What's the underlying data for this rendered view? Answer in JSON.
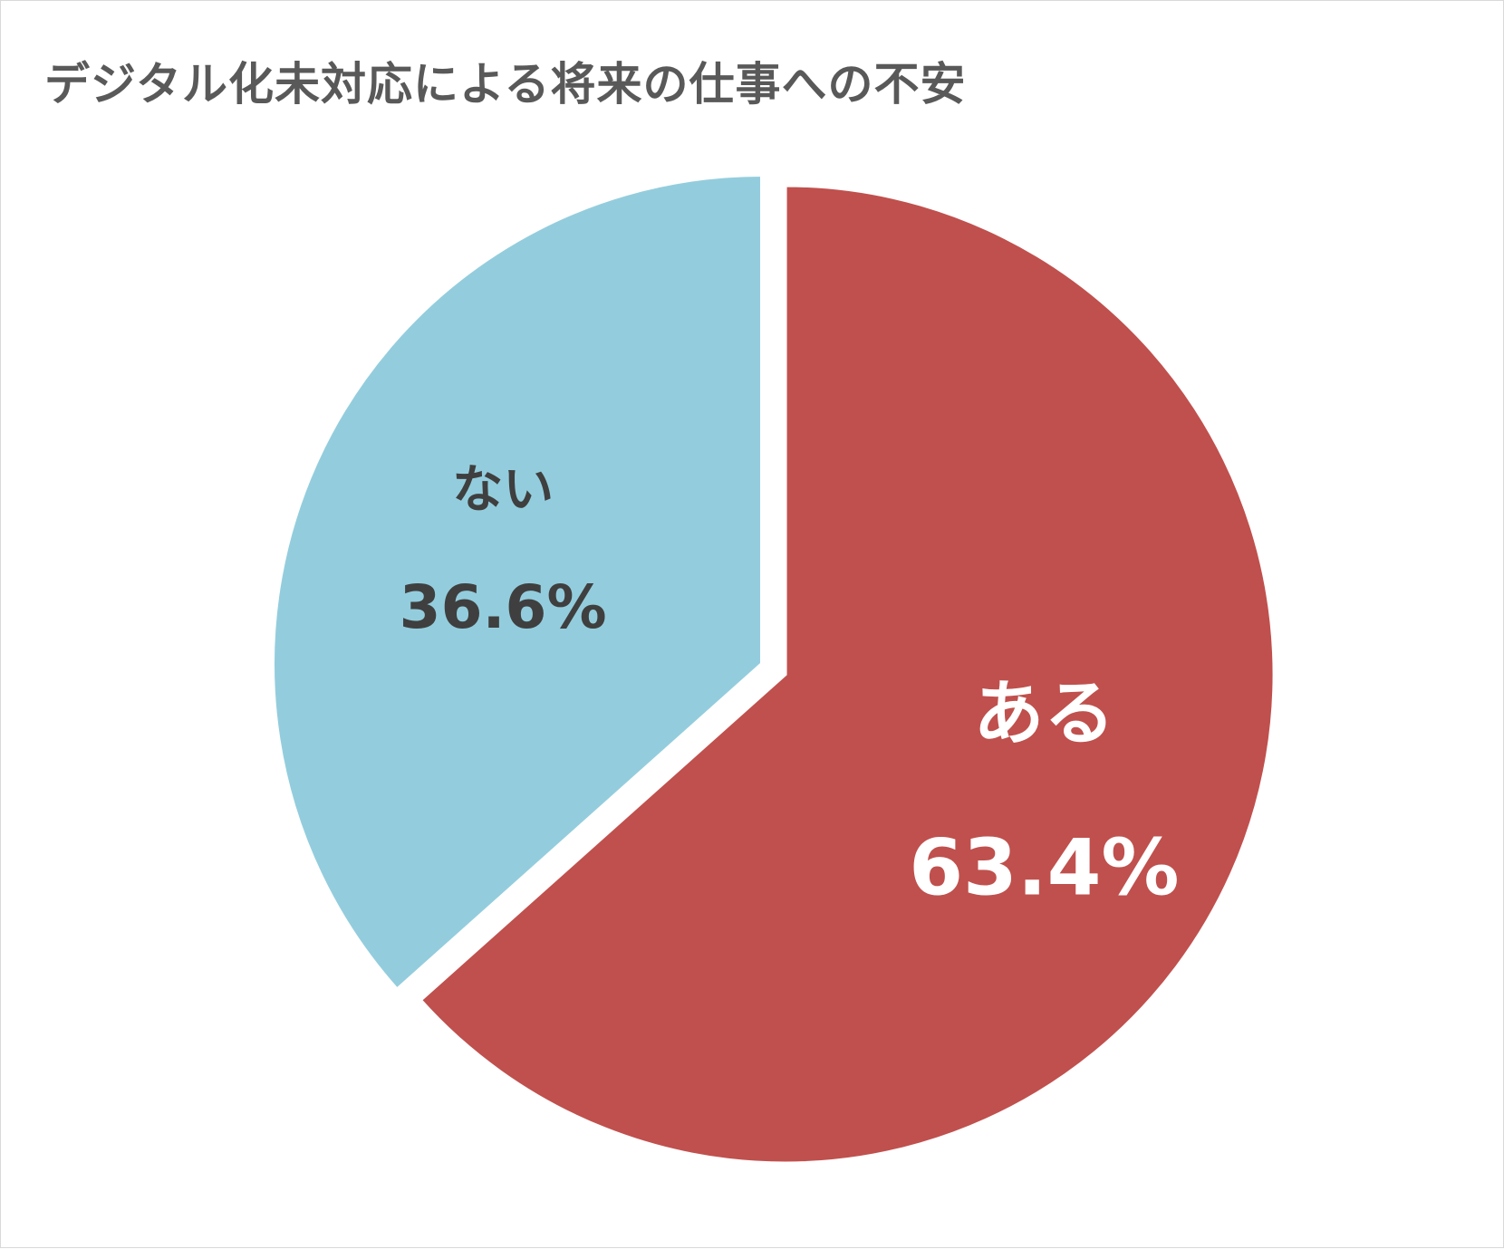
{
  "chart_data": {
    "type": "pie",
    "title": "デジタル化未対応による将来の仕事への不安",
    "slices": [
      {
        "label": "ある",
        "value": 63.4,
        "value_label": "63.4%",
        "color": "#c0504d",
        "text_color": "#ffffff",
        "exploded": true
      },
      {
        "label": "ない",
        "value": 36.6,
        "value_label": "36.6%",
        "color": "#93cddd",
        "text_color": "#3f3f3f",
        "exploded": false
      }
    ],
    "start_angle": "12 o'clock",
    "direction": "clockwise",
    "legend": "none"
  }
}
